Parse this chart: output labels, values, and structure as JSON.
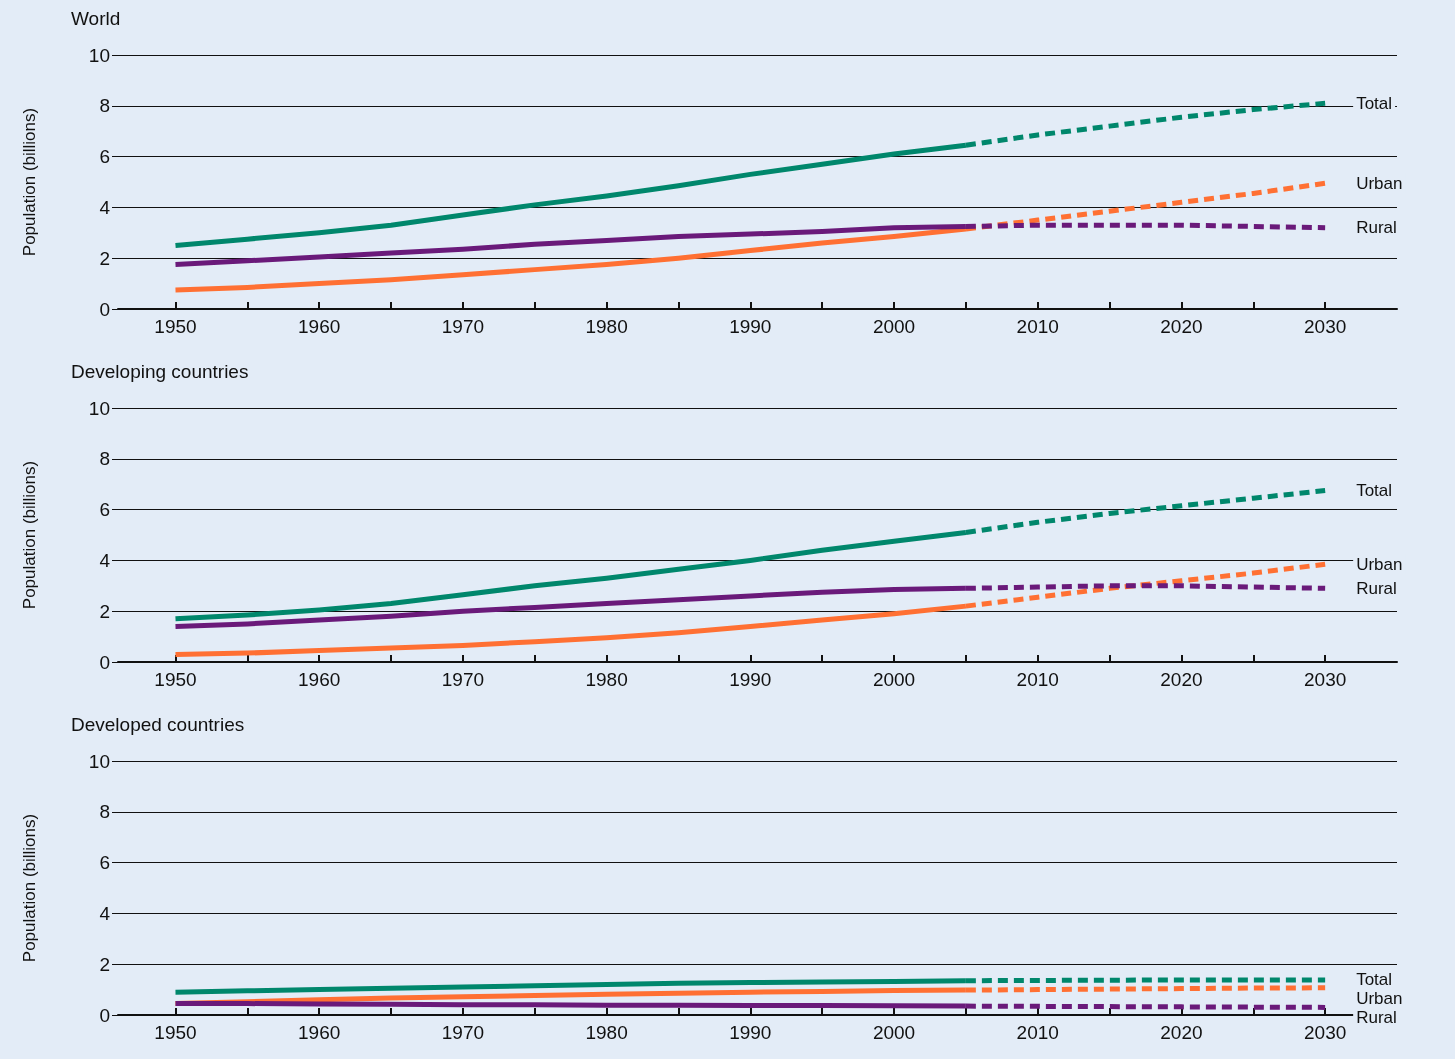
{
  "chart_data": [
    {
      "type": "line",
      "title": "World",
      "ylabel": "Population (billions)",
      "xlim": [
        1946,
        2035
      ],
      "xticks": [
        1950,
        {
          "value": 1955,
          "label": null
        },
        1960,
        {
          "value": 1965,
          "label": null
        },
        1970,
        {
          "value": 1975,
          "label": null
        },
        1980,
        {
          "value": 1985,
          "label": null
        },
        1990,
        {
          "value": 1995,
          "label": null
        },
        2000,
        {
          "value": 2005,
          "label": null
        },
        2010,
        {
          "value": 2015,
          "label": null
        },
        2020,
        {
          "value": 2025,
          "label": null
        },
        2030
      ],
      "ylim": [
        0,
        10
      ],
      "yticks": [
        0,
        2,
        4,
        6,
        8,
        10
      ],
      "grid": "y",
      "marker": "none",
      "series": [
        {
          "color": "#00876c",
          "line_style": "solid",
          "x": [
            1950,
            1955,
            1960,
            1965,
            1970,
            1975,
            1980,
            1985,
            1990,
            1995,
            2000,
            2005
          ],
          "values": [
            2.5,
            2.75,
            3.0,
            3.3,
            3.7,
            4.1,
            4.45,
            4.85,
            5.3,
            5.7,
            6.1,
            6.45
          ]
        },
        {
          "name": "Total",
          "color": "#00876c",
          "line_style": "dashed",
          "x": [
            2005,
            2010,
            2015,
            2020,
            2025,
            2030
          ],
          "values": [
            6.45,
            6.85,
            7.2,
            7.55,
            7.85,
            8.1
          ]
        },
        {
          "color": "#ff7033",
          "line_style": "solid",
          "x": [
            1950,
            1955,
            1960,
            1965,
            1970,
            1975,
            1980,
            1985,
            1990,
            1995,
            2000,
            2005
          ],
          "values": [
            0.75,
            0.85,
            1.0,
            1.15,
            1.35,
            1.55,
            1.75,
            2.0,
            2.3,
            2.6,
            2.85,
            3.15
          ]
        },
        {
          "name": "Urban",
          "color": "#ff7033",
          "line_style": "dashed",
          "x": [
            2005,
            2010,
            2015,
            2020,
            2025,
            2030
          ],
          "values": [
            3.15,
            3.5,
            3.85,
            4.2,
            4.55,
            4.95
          ]
        },
        {
          "color": "#6a1a7a",
          "line_style": "solid",
          "x": [
            1950,
            1955,
            1960,
            1965,
            1970,
            1975,
            1980,
            1985,
            1990,
            1995,
            2000,
            2005
          ],
          "values": [
            1.75,
            1.9,
            2.05,
            2.2,
            2.35,
            2.55,
            2.7,
            2.85,
            2.95,
            3.05,
            3.2,
            3.25
          ]
        },
        {
          "name": "Rural",
          "color": "#6a1a7a",
          "line_style": "dashed",
          "x": [
            2005,
            2010,
            2015,
            2020,
            2025,
            2030
          ],
          "values": [
            3.25,
            3.3,
            3.3,
            3.3,
            3.25,
            3.2
          ]
        }
      ]
    },
    {
      "type": "line",
      "title": "Developing countries",
      "ylabel": "Population (billions)",
      "xlim": [
        1946,
        2035
      ],
      "xticks": [
        1950,
        {
          "value": 1955,
          "label": null
        },
        1960,
        {
          "value": 1965,
          "label": null
        },
        1970,
        {
          "value": 1975,
          "label": null
        },
        1980,
        {
          "value": 1985,
          "label": null
        },
        1990,
        {
          "value": 1995,
          "label": null
        },
        2000,
        {
          "value": 2005,
          "label": null
        },
        2010,
        {
          "value": 2015,
          "label": null
        },
        2020,
        {
          "value": 2025,
          "label": null
        },
        2030
      ],
      "ylim": [
        0,
        10
      ],
      "yticks": [
        0,
        2,
        4,
        6,
        8,
        10
      ],
      "grid": "y",
      "marker": "none",
      "series": [
        {
          "color": "#00876c",
          "line_style": "solid",
          "x": [
            1950,
            1955,
            1960,
            1965,
            1970,
            1975,
            1980,
            1985,
            1990,
            1995,
            2000,
            2005
          ],
          "values": [
            1.7,
            1.85,
            2.05,
            2.3,
            2.65,
            3.0,
            3.3,
            3.65,
            4.0,
            4.4,
            4.75,
            5.1
          ]
        },
        {
          "name": "Total",
          "color": "#00876c",
          "line_style": "dashed",
          "x": [
            2005,
            2010,
            2015,
            2020,
            2025,
            2030
          ],
          "values": [
            5.1,
            5.5,
            5.85,
            6.15,
            6.45,
            6.75
          ]
        },
        {
          "color": "#ff7033",
          "line_style": "solid",
          "x": [
            1950,
            1955,
            1960,
            1965,
            1970,
            1975,
            1980,
            1985,
            1990,
            1995,
            2000,
            2005
          ],
          "values": [
            0.3,
            0.35,
            0.45,
            0.55,
            0.65,
            0.8,
            0.95,
            1.15,
            1.4,
            1.65,
            1.9,
            2.2
          ]
        },
        {
          "name": "Urban",
          "color": "#ff7033",
          "line_style": "dashed",
          "x": [
            2005,
            2010,
            2015,
            2020,
            2025,
            2030
          ],
          "values": [
            2.2,
            2.55,
            2.9,
            3.2,
            3.5,
            3.85
          ]
        },
        {
          "color": "#6a1a7a",
          "line_style": "solid",
          "x": [
            1950,
            1955,
            1960,
            1965,
            1970,
            1975,
            1980,
            1985,
            1990,
            1995,
            2000,
            2005
          ],
          "values": [
            1.4,
            1.5,
            1.65,
            1.8,
            2.0,
            2.15,
            2.3,
            2.45,
            2.6,
            2.75,
            2.85,
            2.9
          ]
        },
        {
          "name": "Rural",
          "color": "#6a1a7a",
          "line_style": "dashed",
          "x": [
            2005,
            2010,
            2015,
            2020,
            2025,
            2030
          ],
          "values": [
            2.9,
            2.95,
            3.0,
            3.0,
            2.95,
            2.9
          ]
        }
      ]
    },
    {
      "type": "line",
      "title": "Developed countries",
      "ylabel": "Population (billions)",
      "xlim": [
        1946,
        2035
      ],
      "xticks": [
        1950,
        {
          "value": 1955,
          "label": null
        },
        1960,
        {
          "value": 1965,
          "label": null
        },
        1970,
        {
          "value": 1975,
          "label": null
        },
        1980,
        {
          "value": 1985,
          "label": null
        },
        1990,
        {
          "value": 1995,
          "label": null
        },
        2000,
        {
          "value": 2005,
          "label": null
        },
        2010,
        {
          "value": 2015,
          "label": null
        },
        2020,
        {
          "value": 2025,
          "label": null
        },
        2030
      ],
      "ylim": [
        0,
        10
      ],
      "yticks": [
        0,
        2,
        4,
        6,
        8,
        10
      ],
      "grid": "y",
      "marker": "none",
      "series": [
        {
          "color": "#00876c",
          "line_style": "solid",
          "x": [
            1950,
            1955,
            1960,
            1965,
            1970,
            1975,
            1980,
            1985,
            1990,
            1995,
            2000,
            2005
          ],
          "values": [
            0.9,
            0.95,
            1.0,
            1.05,
            1.1,
            1.15,
            1.2,
            1.25,
            1.28,
            1.3,
            1.32,
            1.35
          ]
        },
        {
          "name": "Total",
          "color": "#00876c",
          "line_style": "dashed",
          "x": [
            2005,
            2010,
            2015,
            2020,
            2025,
            2030
          ],
          "values": [
            1.35,
            1.36,
            1.37,
            1.38,
            1.38,
            1.38
          ]
        },
        {
          "color": "#ff7033",
          "line_style": "solid",
          "x": [
            1950,
            1955,
            1960,
            1965,
            1970,
            1975,
            1980,
            1985,
            1990,
            1995,
            2000,
            2005
          ],
          "values": [
            0.45,
            0.52,
            0.6,
            0.67,
            0.72,
            0.77,
            0.82,
            0.86,
            0.9,
            0.93,
            0.96,
            0.98
          ]
        },
        {
          "name": "Urban",
          "color": "#ff7033",
          "line_style": "dashed",
          "x": [
            2005,
            2010,
            2015,
            2020,
            2025,
            2030
          ],
          "values": [
            0.98,
            1.0,
            1.02,
            1.04,
            1.06,
            1.07
          ]
        },
        {
          "color": "#6a1a7a",
          "line_style": "solid",
          "x": [
            1950,
            1955,
            1960,
            1965,
            1970,
            1975,
            1980,
            1985,
            1990,
            1995,
            2000,
            2005
          ],
          "values": [
            0.45,
            0.45,
            0.43,
            0.42,
            0.4,
            0.4,
            0.38,
            0.38,
            0.37,
            0.37,
            0.36,
            0.35
          ]
        },
        {
          "name": "Rural",
          "color": "#6a1a7a",
          "line_style": "dashed",
          "x": [
            2005,
            2010,
            2015,
            2020,
            2025,
            2030
          ],
          "values": [
            0.35,
            0.34,
            0.33,
            0.32,
            0.31,
            0.3
          ]
        }
      ]
    }
  ]
}
